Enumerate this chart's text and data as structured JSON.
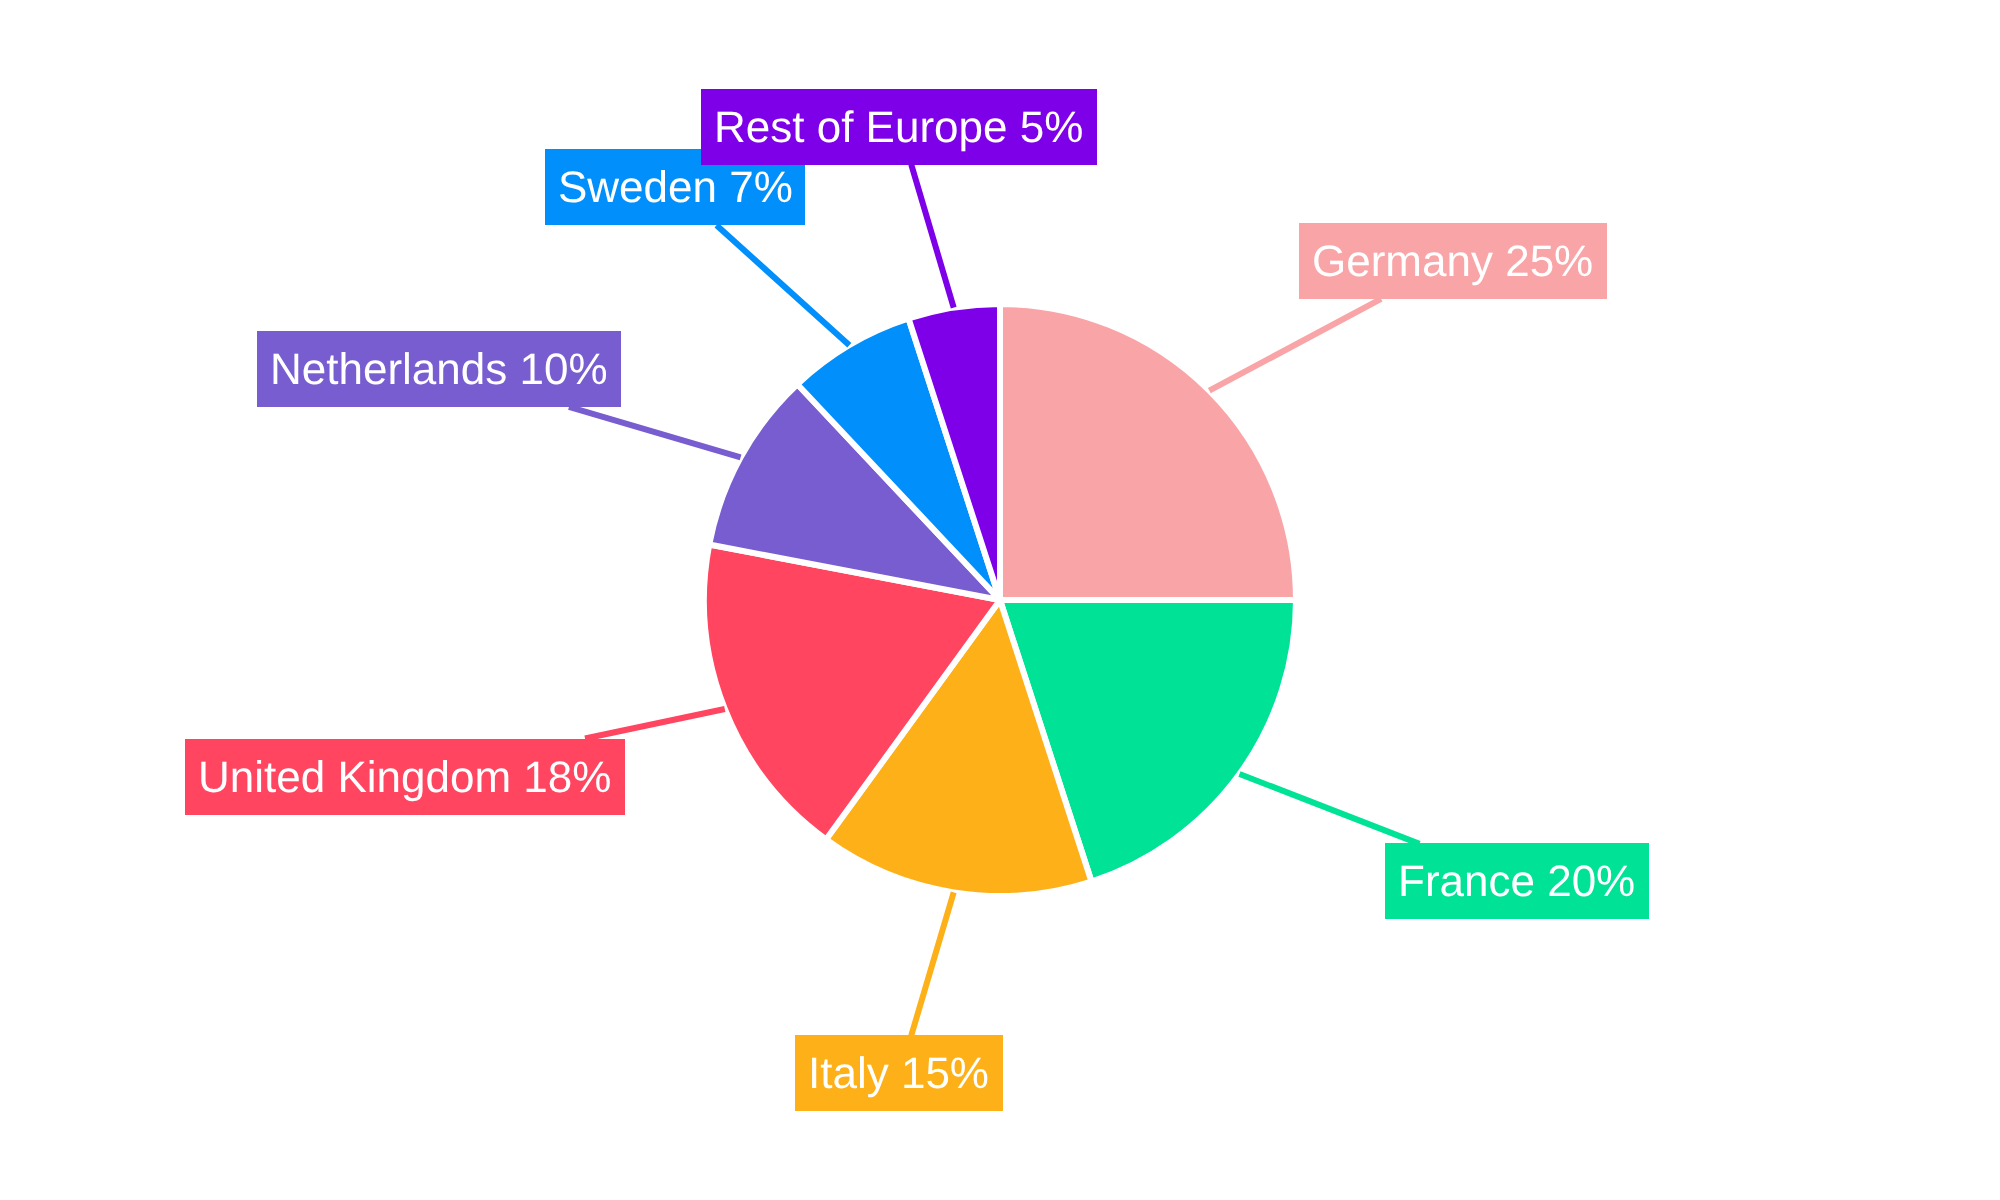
{
  "chart_data": {
    "type": "pie",
    "categories": [
      "Germany",
      "France",
      "Italy",
      "United Kingdom",
      "Netherlands",
      "Sweden",
      "Rest of Europe"
    ],
    "values": [
      25,
      20,
      15,
      18,
      10,
      7,
      5
    ],
    "value_labels": [
      "25%",
      "20%",
      "15%",
      "18%",
      "10%",
      "7%",
      "5%"
    ],
    "colors": [
      "#f9a5a7",
      "#00e396",
      "#feb019",
      "#ff4560",
      "#775dd0",
      "#008ffb",
      "#7e00e9"
    ],
    "legend": false
  }
}
